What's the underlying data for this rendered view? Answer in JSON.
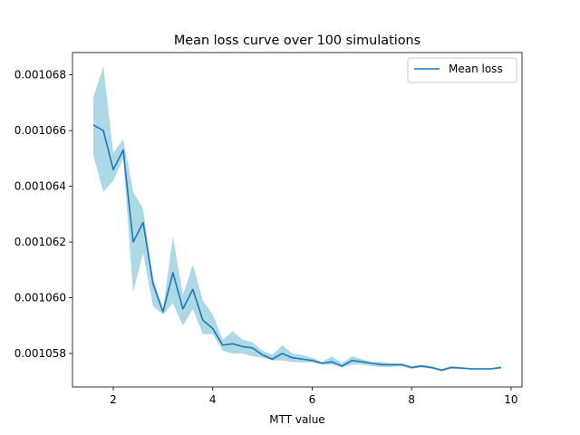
{
  "chart_data": {
    "type": "line",
    "title": "Mean loss curve over 100 simulations",
    "xlabel": "MTT value",
    "ylabel": "",
    "xlim": [
      1.18,
      10.22
    ],
    "ylim": [
      0.0010568,
      0.0010688
    ],
    "xticks": [
      2,
      4,
      6,
      8,
      10
    ],
    "yticks": [
      0.001058,
      0.00106,
      0.001062,
      0.001064,
      0.001066,
      0.001068
    ],
    "xtick_labels": [
      "2",
      "4",
      "6",
      "8",
      "10"
    ],
    "ytick_labels": [
      "0.001058",
      "0.001060",
      "0.001062",
      "0.001064",
      "0.001066",
      "0.001068"
    ],
    "legend": {
      "position": "top-right",
      "entries": [
        "Mean loss"
      ]
    },
    "grid": false,
    "colors": {
      "line": "#1f77b4",
      "band": "#add8e6"
    },
    "series": [
      {
        "name": "Mean loss",
        "x": [
          1.6,
          1.8,
          2.0,
          2.2,
          2.4,
          2.6,
          2.8,
          3.0,
          3.2,
          3.4,
          3.6,
          3.8,
          4.0,
          4.2,
          4.4,
          4.6,
          4.8,
          5.0,
          5.2,
          5.4,
          5.6,
          5.8,
          6.0,
          6.2,
          6.4,
          6.6,
          6.8,
          7.0,
          7.2,
          7.4,
          7.6,
          7.8,
          8.0,
          8.2,
          8.4,
          8.6,
          8.8,
          9.0,
          9.2,
          9.4,
          9.6,
          9.8
        ],
        "y": [
          0.0010662,
          0.001066,
          0.0010646,
          0.0010653,
          0.001062,
          0.0010627,
          0.0010605,
          0.0010595,
          0.0010609,
          0.0010596,
          0.0010603,
          0.0010592,
          0.0010589,
          0.0010583,
          0.00105835,
          0.00105825,
          0.0010582,
          0.00105795,
          0.0010578,
          0.001058,
          0.00105785,
          0.0010578,
          0.00105775,
          0.00105765,
          0.0010577,
          0.00105755,
          0.00105775,
          0.0010577,
          0.00105765,
          0.0010576,
          0.0010576,
          0.0010576,
          0.0010575,
          0.00105755,
          0.0010575,
          0.0010574,
          0.0010575,
          0.00105748,
          0.00105745,
          0.00105745,
          0.00105745,
          0.0010575
        ],
        "lower": [
          0.0010651,
          0.0010638,
          0.0010642,
          0.001065,
          0.0010602,
          0.0010616,
          0.0010597,
          0.0010594,
          0.0010598,
          0.001059,
          0.0010596,
          0.0010587,
          0.0010587,
          0.0010581,
          0.001058,
          0.001058,
          0.0010579,
          0.00105785,
          0.00105775,
          0.00105775,
          0.0010577,
          0.00105768,
          0.00105768,
          0.0010576,
          0.0010576,
          0.0010575,
          0.0010576,
          0.0010576,
          0.00105755,
          0.00105752,
          0.00105752,
          0.00105755,
          0.00105745,
          0.0010575,
          0.00105745,
          0.00105738,
          0.00105745,
          0.00105745,
          0.00105742,
          0.00105742,
          0.00105742,
          0.00105745
        ],
        "upper": [
          0.0010672,
          0.0010683,
          0.0010652,
          0.0010657,
          0.0010638,
          0.0010632,
          0.0010607,
          0.0010596,
          0.0010622,
          0.0010601,
          0.0010612,
          0.0010599,
          0.0010594,
          0.0010585,
          0.0010588,
          0.0010585,
          0.0010584,
          0.0010581,
          0.00105795,
          0.0010583,
          0.001058,
          0.00105795,
          0.00105785,
          0.0010577,
          0.0010579,
          0.00105765,
          0.0010579,
          0.0010578,
          0.0010577,
          0.0010577,
          0.00105765,
          0.00105765,
          0.00105755,
          0.0010576,
          0.00105755,
          0.00105745,
          0.00105755,
          0.0010575,
          0.00105748,
          0.00105748,
          0.00105748,
          0.00105755
        ]
      }
    ]
  }
}
